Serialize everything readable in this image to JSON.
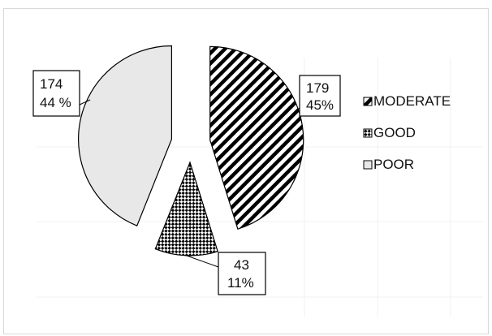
{
  "chart_data": {
    "type": "pie",
    "exploded": true,
    "legend_position": "right",
    "slices": [
      {
        "label": "MODERATE",
        "value": 179,
        "percent_label": "45%",
        "pattern": "diagonal-stripes",
        "color": "#000000"
      },
      {
        "label": "GOOD",
        "value": 43,
        "percent_label": "11%",
        "pattern": "checkerboard",
        "color": "#000000"
      },
      {
        "label": "POOR",
        "value": 174,
        "percent_label": "44 %",
        "pattern": "solid-light",
        "color": "#e8e8e8"
      }
    ]
  }
}
